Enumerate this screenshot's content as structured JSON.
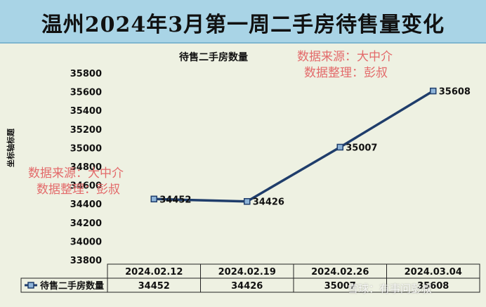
{
  "header": {
    "title": "温州2024年3月第一周二手房待售量变化"
  },
  "watermarks": {
    "source_line": "数据来源：大中介",
    "editor_line": "数据整理：彭叔",
    "platform": "雪球：有事问彭叔"
  },
  "chart_data": {
    "type": "line",
    "title": "待售二手房数量",
    "xlabel": "",
    "ylabel": "坐标轴标题",
    "categories": [
      "2024.02.12",
      "2024.02.19",
      "2024.02.26",
      "2024.03.04"
    ],
    "series": [
      {
        "name": "待售二手房数量",
        "values": [
          34452,
          34426,
          35007,
          35608
        ],
        "color": "#1f3d6b"
      }
    ],
    "ylim": [
      33800,
      35800
    ],
    "yticks": [
      33800,
      34000,
      34200,
      34400,
      34600,
      34800,
      35000,
      35200,
      35400,
      35600,
      35800
    ],
    "data_labels": true,
    "data_table": true,
    "grid": false,
    "legend": "data-table"
  }
}
